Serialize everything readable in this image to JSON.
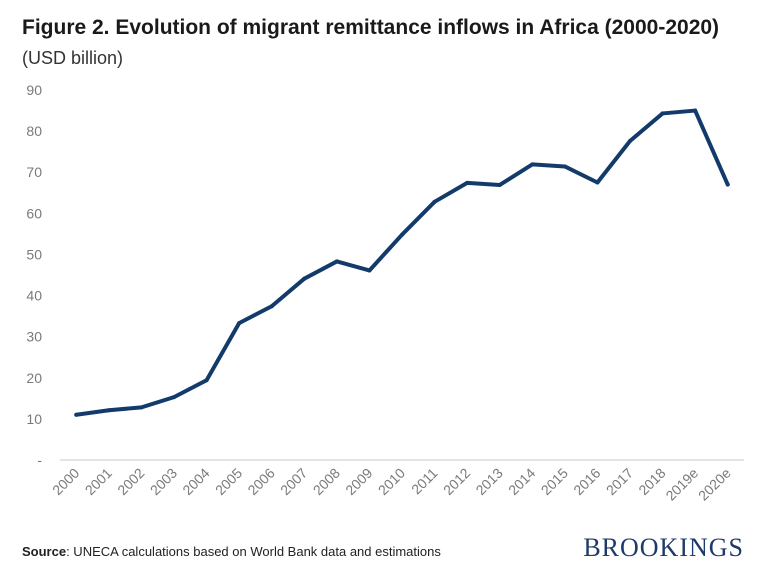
{
  "header": {
    "title": "Figure 2. Evolution of migrant remittance inflows in Africa (2000-2020)",
    "subtitle": "(USD billion)"
  },
  "footer": {
    "source_label": "Source",
    "source_text": ": UNECA calculations based on World Bank data and estimations",
    "logo_text": "BROOKINGS"
  },
  "colors": {
    "line": "#123b6b",
    "axis_text": "#7a7a7a",
    "axis_line": "#c8c8c8"
  },
  "chart_data": {
    "type": "line",
    "title": "Figure 2. Evolution of migrant remittance inflows in Africa (2000-2020)",
    "subtitle": "(USD billion)",
    "xlabel": "",
    "ylabel": "",
    "categories": [
      "2000",
      "2001",
      "2002",
      "2003",
      "2004",
      "2005",
      "2006",
      "2007",
      "2008",
      "2009",
      "2010",
      "2011",
      "2012",
      "2013",
      "2014",
      "2015",
      "2016",
      "2017",
      "2018",
      "2019e",
      "2020e"
    ],
    "series": [
      {
        "name": "Migrant remittance inflows",
        "values": [
          11,
          12.1,
          12.8,
          15.3,
          19.4,
          33.3,
          37.4,
          44.1,
          48.3,
          46.1,
          54.8,
          62.8,
          67.4,
          66.9,
          71.9,
          71.4,
          67.5,
          77.6,
          84.3,
          85,
          67
        ]
      }
    ],
    "ylim": [
      0,
      90
    ],
    "yticks": [
      0,
      10,
      20,
      30,
      40,
      50,
      60,
      70,
      80,
      90
    ],
    "ytick_labels": [
      "-",
      "10",
      "20",
      "30",
      "40",
      "50",
      "60",
      "70",
      "80",
      "90"
    ],
    "grid": false,
    "legend": "none"
  }
}
